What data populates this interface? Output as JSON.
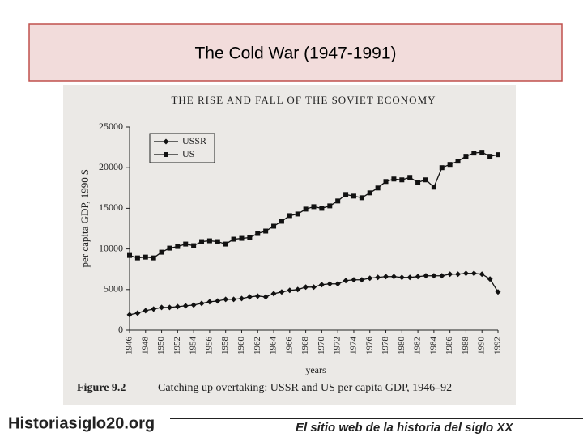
{
  "slide_title": "The Cold War (1947-1991)",
  "chart_data": {
    "type": "line",
    "title": "THE RISE AND FALL OF THE SOVIET ECONOMY",
    "ylabel": "per capita GDP, 1990 $",
    "xlabel": "years",
    "figure_label": "Figure 9.2",
    "caption": "Catching up overtaking: USSR and US per capita GDP, 1946–92",
    "x": [
      1946,
      1947,
      1948,
      1949,
      1950,
      1951,
      1952,
      1953,
      1954,
      1955,
      1956,
      1957,
      1958,
      1959,
      1960,
      1961,
      1962,
      1963,
      1964,
      1965,
      1966,
      1967,
      1968,
      1969,
      1970,
      1971,
      1972,
      1973,
      1974,
      1975,
      1976,
      1977,
      1978,
      1979,
      1980,
      1981,
      1982,
      1983,
      1984,
      1985,
      1986,
      1987,
      1988,
      1989,
      1990,
      1991,
      1992
    ],
    "series": [
      {
        "name": "USSR",
        "color": "#111111",
        "marker": "diamond",
        "values": [
          1900,
          2100,
          2400,
          2600,
          2800,
          2800,
          2900,
          3000,
          3100,
          3300,
          3500,
          3600,
          3800,
          3800,
          3900,
          4100,
          4200,
          4100,
          4500,
          4700,
          4900,
          5000,
          5300,
          5300,
          5600,
          5700,
          5700,
          6100,
          6200,
          6200,
          6400,
          6500,
          6600,
          6600,
          6500,
          6500,
          6600,
          6700,
          6700,
          6700,
          6900,
          6900,
          7000,
          7000,
          6900,
          6300,
          4700
        ]
      },
      {
        "name": "US",
        "color": "#111111",
        "marker": "square",
        "values": [
          9200,
          8900,
          9000,
          8900,
          9600,
          10100,
          10300,
          10600,
          10400,
          10900,
          11000,
          10900,
          10600,
          11200,
          11300,
          11400,
          11900,
          12200,
          12800,
          13400,
          14100,
          14300,
          14900,
          15200,
          15000,
          15300,
          15900,
          16700,
          16500,
          16300,
          16900,
          17500,
          18300,
          18600,
          18500,
          18800,
          18200,
          18500,
          17600,
          20000,
          20400,
          20800,
          21400,
          21800,
          21900,
          21400,
          21600
        ]
      }
    ],
    "xlim": [
      1946,
      1992
    ],
    "xticks": [
      1946,
      1948,
      1950,
      1952,
      1954,
      1956,
      1958,
      1960,
      1962,
      1964,
      1966,
      1968,
      1970,
      1972,
      1974,
      1976,
      1978,
      1980,
      1982,
      1984,
      1986,
      1988,
      1990,
      1992
    ],
    "ylim": [
      0,
      25000
    ],
    "yticks": [
      0,
      5000,
      10000,
      15000,
      20000,
      25000
    ],
    "grid": false,
    "legend": "upper left"
  },
  "footer": {
    "site": "Historiasiglo20.org",
    "tagline": "El sitio web de la historia del siglo XX"
  }
}
